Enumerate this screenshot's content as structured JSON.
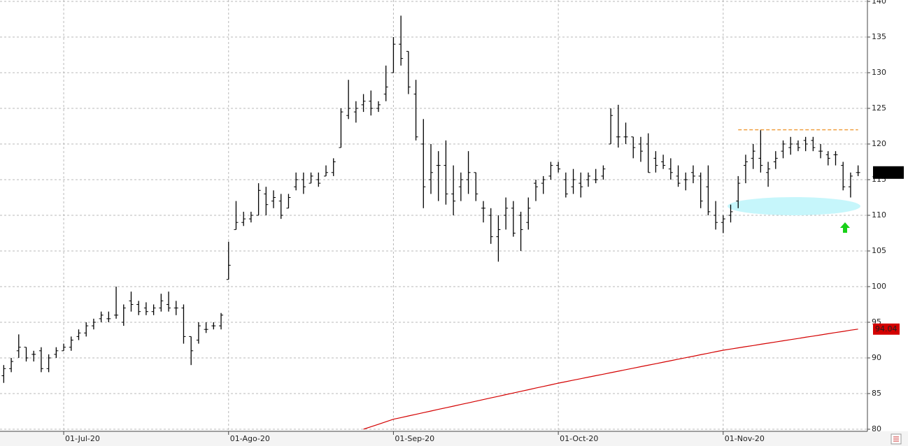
{
  "chart_data": {
    "type": "ohlc",
    "categories": [
      null,
      null,
      null,
      null,
      null,
      null,
      null,
      null,
      "01-Jul-20",
      null,
      null,
      null,
      null,
      null,
      null,
      null,
      null,
      null,
      null,
      null,
      null,
      null,
      null,
      null,
      null,
      null,
      null,
      null,
      null,
      null,
      "01-Ago-20",
      null,
      null,
      null,
      null,
      null,
      null,
      null,
      null,
      null,
      null,
      null,
      null,
      null,
      null,
      null,
      null,
      null,
      null,
      null,
      null,
      null,
      "01-Sep-20",
      null,
      null,
      null,
      null,
      null,
      null,
      null,
      null,
      null,
      null,
      null,
      null,
      null,
      null,
      null,
      null,
      null,
      null,
      null,
      null,
      null,
      "01-Oct-20",
      null,
      null,
      null,
      null,
      null,
      null,
      null,
      null,
      null,
      null,
      null,
      null,
      null,
      null,
      null,
      null,
      null,
      null,
      null,
      null,
      null,
      "01-Nov-20",
      null,
      null,
      null,
      null,
      null,
      null,
      null,
      null,
      null,
      null,
      null,
      null,
      null,
      null,
      null,
      null,
      null,
      null
    ],
    "ohlc": {
      "open": [
        87.5,
        88.5,
        91,
        91.5,
        90.5,
        91,
        88.5,
        90.5,
        91,
        91.5,
        93,
        93.5,
        94.5,
        95.5,
        95.5,
        96,
        95,
        98,
        97.5,
        97,
        96.5,
        97,
        97.5,
        97,
        97,
        93,
        92.5,
        94,
        94.5,
        94.5,
        101,
        108,
        109,
        109.5,
        110,
        113,
        112,
        112,
        111,
        114,
        115,
        114.5,
        115,
        115.5,
        116,
        119.5,
        124,
        124.5,
        125.5,
        126,
        125,
        127,
        130,
        134,
        133,
        127,
        120,
        115,
        117,
        117,
        113,
        114,
        115,
        116,
        111,
        110,
        107,
        110,
        111,
        110,
        109,
        114.5,
        114.5,
        115.5,
        117,
        115,
        114,
        114.5,
        115,
        115,
        115.5,
        120,
        121,
        121,
        121,
        120,
        120,
        118,
        117.5,
        116.5,
        115.5,
        115,
        116,
        115.5,
        114,
        110,
        109,
        110,
        112,
        117,
        118,
        118,
        116,
        117.5,
        119,
        119.5,
        120,
        120.5,
        120.5,
        119,
        118.5,
        118.5,
        117,
        114,
        116
      ],
      "high": [
        89,
        90,
        93.3,
        91.5,
        91,
        91.5,
        90.5,
        91.5,
        92,
        93,
        94,
        95,
        95.5,
        96.5,
        96.5,
        100,
        97.5,
        99.3,
        98,
        97.8,
        97.5,
        99,
        99.3,
        98,
        97.5,
        93,
        95,
        95,
        95,
        96.3,
        106.3,
        112,
        110.5,
        110.5,
        114.5,
        114,
        113.5,
        113,
        113,
        116,
        116,
        116,
        116,
        117,
        118,
        125,
        129,
        126,
        127,
        127.5,
        126,
        131,
        135,
        138,
        133,
        129,
        123.5,
        120,
        119,
        120.5,
        117,
        116,
        119,
        116,
        112,
        111,
        110,
        112.5,
        112,
        110.5,
        112.5,
        115,
        115.5,
        117.5,
        117.5,
        116,
        116.5,
        116,
        116,
        116.5,
        117,
        125,
        125.5,
        123,
        121,
        121,
        121.5,
        119,
        118.5,
        118,
        117,
        116,
        117,
        116,
        117,
        112,
        110,
        111.5,
        115.5,
        118.5,
        120,
        122,
        117.5,
        119,
        120.5,
        121,
        120.5,
        121,
        121,
        120,
        119,
        119,
        117.5,
        116,
        117
      ],
      "low": [
        86.5,
        88,
        90,
        89.5,
        89.5,
        88,
        88,
        90,
        91,
        91,
        92.5,
        93,
        94,
        95,
        95,
        95.5,
        94.5,
        96.5,
        96,
        96,
        96,
        96.5,
        96.5,
        96,
        92,
        89,
        92,
        93.5,
        94,
        94,
        101,
        108,
        108.5,
        109,
        110,
        110,
        111,
        109.5,
        111,
        113.5,
        113,
        114.5,
        114,
        115.5,
        115.5,
        119.5,
        123.5,
        123,
        124.5,
        124,
        124.5,
        126,
        130,
        131,
        127,
        120.5,
        111,
        113,
        112,
        111.5,
        110,
        112,
        113,
        112,
        109,
        106,
        103.5,
        108,
        107,
        105,
        108,
        112,
        113,
        115,
        116,
        112.5,
        113,
        112.5,
        114,
        114.5,
        115,
        120,
        119.5,
        120,
        118,
        117.5,
        116,
        116,
        116.5,
        115,
        114,
        113.5,
        114.5,
        111,
        110,
        108,
        107.5,
        109,
        111,
        114.5,
        116.5,
        116,
        114,
        116.5,
        118,
        118.5,
        119,
        119,
        119,
        118,
        117,
        117,
        113.5,
        112.5,
        115.5
      ],
      "close": [
        88.5,
        89.5,
        91.5,
        90,
        90.5,
        88.5,
        90,
        91,
        91.5,
        92.5,
        93.5,
        94.5,
        95,
        96,
        95.5,
        96,
        97,
        97.5,
        96.5,
        96.5,
        97,
        98,
        97,
        97,
        93,
        91,
        94.5,
        94,
        94.5,
        96,
        103,
        109,
        109.5,
        110,
        113.5,
        111.5,
        112.5,
        110,
        112.5,
        115,
        114,
        115.5,
        114.5,
        116,
        117.5,
        124.5,
        125,
        125,
        126,
        125,
        125.5,
        128,
        134,
        132,
        128,
        121,
        114,
        116,
        117,
        113,
        112,
        115,
        116,
        113,
        111,
        107,
        108,
        111,
        107.5,
        108,
        111,
        114,
        115,
        117,
        116.5,
        113,
        115,
        114,
        115.5,
        115,
        116.5,
        124,
        121,
        121,
        119.5,
        119,
        116,
        117,
        117,
        116,
        114.5,
        115,
        115.5,
        112,
        110.5,
        109,
        109.5,
        110.5,
        114.5,
        117.5,
        119,
        117,
        116.5,
        118,
        120,
        120,
        119.5,
        120,
        119.5,
        119,
        118,
        118.5,
        114,
        115.5,
        116
      ]
    },
    "ma": {
      "color": "#d40000",
      "label": "94.04",
      "values": [
        null,
        null,
        null,
        null,
        null,
        null,
        null,
        null,
        null,
        null,
        null,
        null,
        null,
        null,
        null,
        null,
        null,
        null,
        null,
        null,
        null,
        null,
        null,
        null,
        null,
        null,
        null,
        null,
        null,
        null,
        null,
        null,
        null,
        null,
        null,
        null,
        null,
        null,
        null,
        null,
        null,
        null,
        null,
        null,
        null,
        null,
        null,
        null,
        80.0,
        80.35,
        80.7,
        81.05,
        81.4,
        81.63,
        81.86,
        82.09,
        82.32,
        82.55,
        82.78,
        83.01,
        83.24,
        83.47,
        83.7,
        83.93,
        84.16,
        84.39,
        84.62,
        84.85,
        85.08,
        85.31,
        85.54,
        85.77,
        86.0,
        86.23,
        86.46,
        86.67,
        86.88,
        87.09,
        87.3,
        87.51,
        87.72,
        87.93,
        88.14,
        88.35,
        88.56,
        88.77,
        88.98,
        89.19,
        89.4,
        89.61,
        89.82,
        90.03,
        90.24,
        90.45,
        90.66,
        90.87,
        91.08,
        91.25,
        91.41,
        91.58,
        91.74,
        91.91,
        92.07,
        92.24,
        92.4,
        92.57,
        92.73,
        92.9,
        93.06,
        93.23,
        93.39,
        93.56,
        93.72,
        93.89,
        94.04
      ]
    },
    "resistance": {
      "value": 122,
      "color": "#f0a040"
    },
    "bar_color": "#000000",
    "ylim": [
      80,
      140
    ],
    "yticks": [
      80,
      85,
      90,
      95,
      100,
      105,
      110,
      115,
      120,
      125,
      130,
      135,
      140
    ],
    "grid": true
  }
}
